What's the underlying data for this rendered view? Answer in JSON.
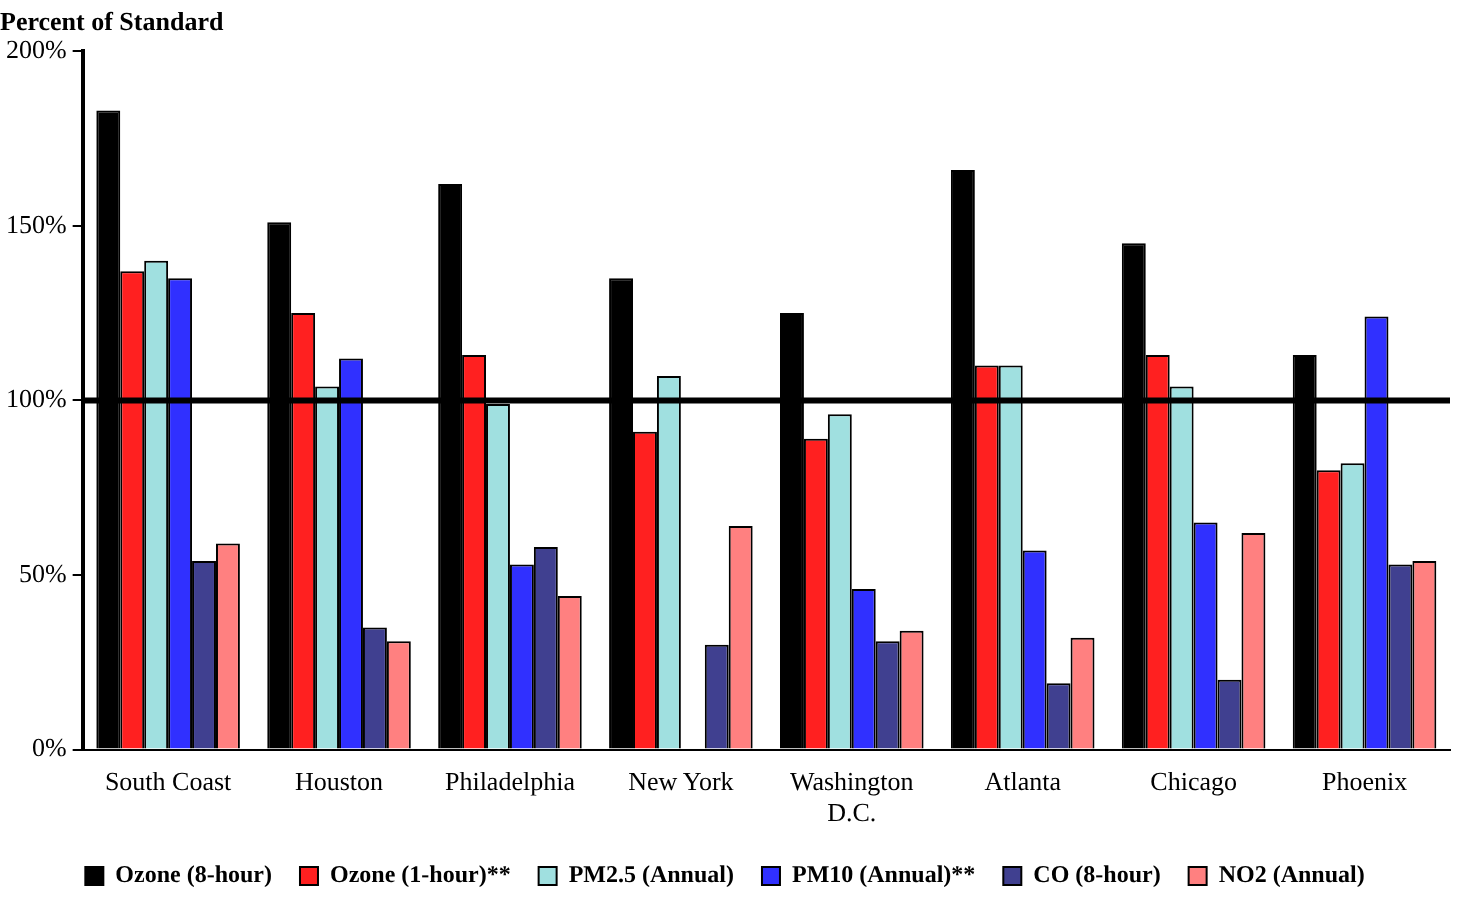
{
  "chart_data": {
    "type": "bar",
    "title": "Percent of Standard",
    "categories": [
      "South Coast",
      "Houston",
      "Philadelphia",
      "New York",
      "Washington D.C.",
      "Atlanta",
      "Chicago",
      "Phoenix"
    ],
    "series": [
      {
        "name": "Ozone (8-hour)",
        "color": "#000000",
        "values": [
          183,
          151,
          162,
          135,
          125,
          166,
          145,
          113
        ]
      },
      {
        "name": "Ozone (1-hour)**",
        "color": "#ff2020",
        "values": [
          137,
          125,
          113,
          91,
          89,
          110,
          113,
          80
        ]
      },
      {
        "name": "PM2.5 (Annual)",
        "color": "#a0e0e0",
        "values": [
          140,
          104,
          99,
          107,
          96,
          110,
          104,
          82
        ]
      },
      {
        "name": "PM10 (Annual)**",
        "color": "#3030ff",
        "values": [
          135,
          112,
          53,
          null,
          46,
          57,
          65,
          124
        ]
      },
      {
        "name": "CO (8-hour)",
        "color": "#404090",
        "values": [
          54,
          35,
          58,
          30,
          31,
          19,
          20,
          53
        ]
      },
      {
        "name": "NO2 (Annual)",
        "color": "#ff8080",
        "values": [
          59,
          31,
          44,
          64,
          34,
          32,
          62,
          54
        ]
      }
    ],
    "ylim": [
      0,
      200
    ],
    "yticks": [
      {
        "value": 0,
        "label": "0%"
      },
      {
        "value": 50,
        "label": "50%"
      },
      {
        "value": 100,
        "label": "100%"
      },
      {
        "value": 150,
        "label": "150%"
      },
      {
        "value": 200,
        "label": "200%"
      }
    ],
    "ref_lines": [
      {
        "axis": "y",
        "value": 100,
        "color": "#000000"
      }
    ],
    "grid": false,
    "legend": "bottom"
  }
}
